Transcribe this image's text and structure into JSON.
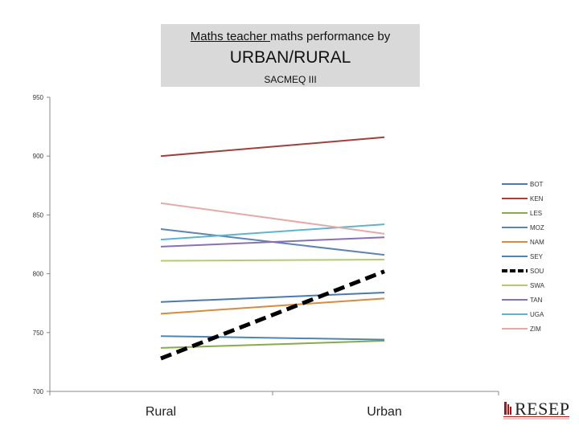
{
  "title": {
    "underlined": "Maths teacher ",
    "rest": "maths performance by",
    "main": "URBAN/RURAL",
    "sub": "SACMEQ III"
  },
  "logo": {
    "text": "RESEP"
  },
  "chart_data": {
    "type": "line",
    "categories": [
      "Rural",
      "Urban"
    ],
    "ylim": [
      700,
      950
    ],
    "yticks": [
      700,
      750,
      800,
      850,
      900,
      950
    ],
    "legend_position": "right",
    "grid": false,
    "series": [
      {
        "name": "BOT",
        "values": [
          776,
          784
        ],
        "color": "#4a7ab0",
        "dashed": false
      },
      {
        "name": "KEN",
        "values": [
          900,
          916
        ],
        "color": "#a0403c",
        "dashed": false
      },
      {
        "name": "LES",
        "values": [
          737,
          743
        ],
        "color": "#8aaa50",
        "dashed": false
      },
      {
        "name": "MOZ",
        "values": [
          838,
          816
        ],
        "color": "#5f84b0",
        "dashed": false
      },
      {
        "name": "NAM",
        "values": [
          766,
          779
        ],
        "color": "#d98a3c",
        "dashed": false
      },
      {
        "name": "SEY",
        "values": [
          747,
          744
        ],
        "color": "#4f86b0",
        "dashed": false
      },
      {
        "name": "SOU",
        "values": [
          728,
          802
        ],
        "color": "#000000",
        "dashed": true
      },
      {
        "name": "SWA",
        "values": [
          811,
          812
        ],
        "color": "#b4cc70",
        "dashed": false
      },
      {
        "name": "TAN",
        "values": [
          823,
          831
        ],
        "color": "#8a70b0",
        "dashed": false
      },
      {
        "name": "UGA",
        "values": [
          829,
          842
        ],
        "color": "#5fb4cc",
        "dashed": false
      },
      {
        "name": "ZIM",
        "values": [
          860,
          834
        ],
        "color": "#e4aaa8",
        "dashed": false
      }
    ]
  }
}
